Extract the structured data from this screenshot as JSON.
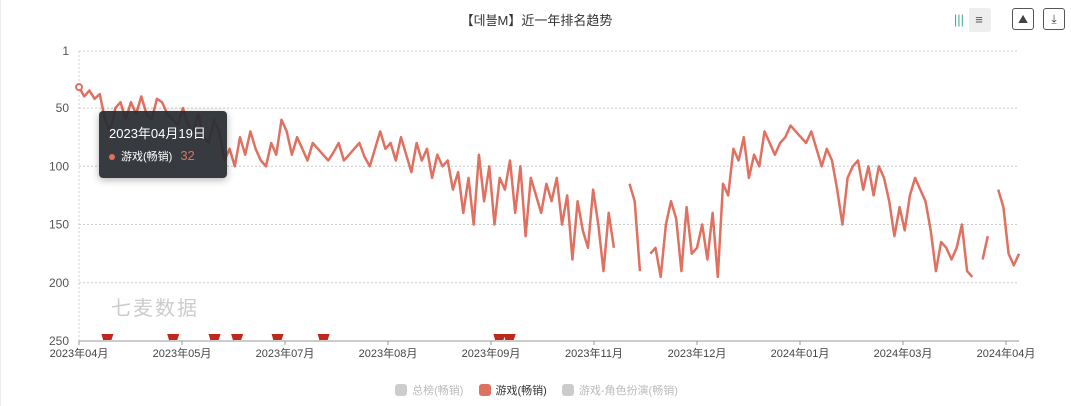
{
  "header": {
    "title": "【데블M】近一年排名趋势"
  },
  "toolbar": {
    "icons": [
      "bar-chart-icon",
      "list-icon",
      "image-icon",
      "download-icon"
    ]
  },
  "watermark": "七麦数据",
  "tooltip": {
    "date": "2023年04月19日",
    "series": "游戏(畅销)",
    "value": "32"
  },
  "legend": [
    {
      "label": "总榜(畅销)",
      "active": false
    },
    {
      "label": "游戏(畅销)",
      "active": true
    },
    {
      "label": "游戏-角色扮演(畅销)",
      "active": false
    }
  ],
  "colors": {
    "series": "#e07060",
    "flag": "#c0281c"
  },
  "chart_data": {
    "type": "line",
    "title": "【데블M】近一年排名趋势",
    "ylim": [
      250,
      1
    ],
    "yticks": [
      "1",
      "50",
      "100",
      "150",
      "200",
      "250"
    ],
    "ytick_values": [
      1,
      50,
      100,
      150,
      200,
      250
    ],
    "xticks": [
      "2023年04月",
      "2023年05月",
      "2023年07月",
      "2023年08月",
      "2023年09月",
      "2023年11月",
      "2023年12月",
      "2024年01月",
      "2024年03月",
      "2024年04月"
    ],
    "series": [
      {
        "name": "游戏(畅销)",
        "values": [
          32,
          40,
          35,
          42,
          38,
          60,
          70,
          50,
          45,
          60,
          45,
          55,
          40,
          55,
          60,
          42,
          45,
          55,
          60,
          65,
          50,
          65,
          70,
          55,
          75,
          80,
          60,
          70,
          95,
          85,
          100,
          75,
          90,
          70,
          85,
          95,
          100,
          80,
          90,
          60,
          70,
          90,
          75,
          85,
          95,
          80,
          85,
          90,
          95,
          88,
          80,
          95,
          90,
          85,
          80,
          92,
          100,
          85,
          70,
          85,
          80,
          95,
          75,
          90,
          105,
          80,
          95,
          85,
          110,
          90,
          100,
          95,
          120,
          105,
          140,
          110,
          150,
          90,
          130,
          100,
          150,
          110,
          120,
          95,
          140,
          100,
          160,
          110,
          125,
          140,
          115,
          130,
          110,
          150,
          125,
          180,
          130,
          155,
          170,
          120,
          150,
          190,
          140,
          170,
          null,
          null,
          115,
          130,
          190,
          null,
          175,
          170,
          195,
          150,
          130,
          145,
          190,
          135,
          175,
          170,
          150,
          180,
          140,
          195,
          115,
          125,
          85,
          95,
          75,
          110,
          90,
          100,
          70,
          80,
          90,
          80,
          75,
          65,
          70,
          75,
          80,
          70,
          85,
          100,
          85,
          95,
          120,
          150,
          110,
          100,
          95,
          120,
          100,
          125,
          100,
          110,
          130,
          160,
          135,
          155,
          125,
          110,
          120,
          130,
          155,
          190,
          165,
          170,
          180,
          170,
          150,
          190,
          195,
          null,
          180,
          160,
          null,
          120,
          135,
          175,
          185,
          175
        ]
      }
    ],
    "event_flags": [
      0.026,
      0.096,
      0.14,
      0.164,
      0.207,
      0.256,
      0.443,
      0.454
    ]
  }
}
